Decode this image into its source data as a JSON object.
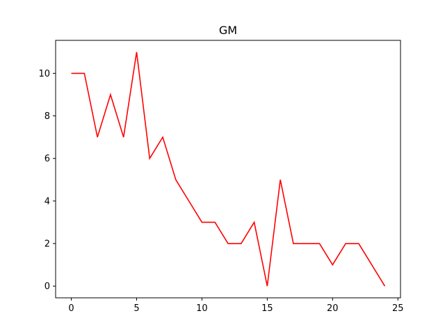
{
  "chart_data": {
    "type": "line",
    "title": "GM",
    "xlabel": "",
    "ylabel": "",
    "xlim": [
      -1.2,
      25.2
    ],
    "ylim": [
      -0.55,
      11.55
    ],
    "x_ticks": [
      0,
      5,
      10,
      15,
      20,
      25
    ],
    "y_ticks": [
      0,
      2,
      4,
      6,
      8,
      10
    ],
    "grid": false,
    "series": [
      {
        "color": "#ff0000",
        "x": [
          0,
          1,
          2,
          3,
          4,
          5,
          6,
          7,
          8,
          9,
          10,
          11,
          12,
          13,
          14,
          15,
          16,
          17,
          18,
          19,
          20,
          21,
          22,
          23,
          24
        ],
        "values": [
          10,
          10,
          7,
          9,
          7,
          11,
          6,
          7,
          5,
          4,
          3,
          3,
          2,
          2,
          3,
          0,
          5,
          2,
          2,
          2,
          1,
          2,
          2,
          1,
          0
        ]
      }
    ]
  }
}
